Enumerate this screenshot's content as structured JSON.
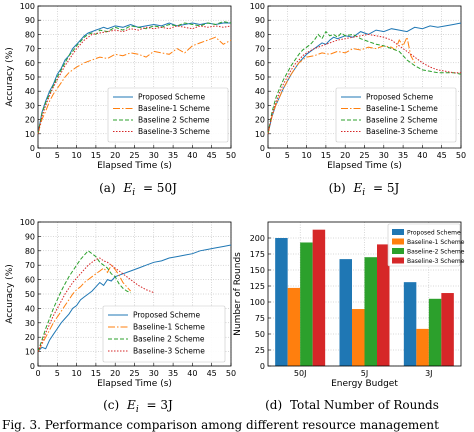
{
  "figure_caption": "Fig. 3.   Performance comparison among different resource management",
  "charts_meta": {
    "colors": {
      "proposed": "#1f77b4",
      "baseline1": "#ff7f0e",
      "baseline2": "#2ca02c",
      "baseline3": "#d62728"
    }
  },
  "chart_data": [
    {
      "type": "line",
      "caption": "(a)  E_i = 50J",
      "caption_prefix": "(a)",
      "caption_var": "E",
      "caption_sub": "i",
      "caption_value": "= 50J",
      "xlabel": "Elapsed Time (s)",
      "ylabel": "Accuracy (%)",
      "xlim": [
        0,
        50
      ],
      "ylim": [
        0,
        100
      ],
      "xticks": [
        0,
        5,
        10,
        15,
        20,
        25,
        30,
        35,
        40,
        45,
        50
      ],
      "yticks": [
        0,
        10,
        20,
        30,
        40,
        50,
        60,
        70,
        80,
        90,
        100
      ],
      "grid": true,
      "legend_position": "bottom-right",
      "series": [
        {
          "name": "Proposed Scheme",
          "key": "proposed",
          "dash": "",
          "x": [
            0,
            1,
            2,
            3,
            4,
            5,
            6,
            7,
            8,
            9,
            10,
            11,
            12,
            13,
            14,
            15,
            16,
            17,
            18,
            20,
            22,
            24,
            26,
            28,
            30,
            32,
            34,
            36,
            38,
            40,
            42,
            44,
            46,
            48,
            50
          ],
          "y": [
            10,
            25,
            33,
            40,
            45,
            52,
            56,
            62,
            65,
            70,
            73,
            76,
            79,
            81,
            82,
            83,
            84,
            85,
            84,
            86,
            85,
            87,
            85,
            86,
            87,
            86,
            88,
            86,
            87,
            88,
            87,
            88,
            87,
            88,
            88
          ]
        },
        {
          "name": "Baseline-1 Scheme",
          "key": "baseline1",
          "dash": "7,2,1.5,2",
          "x": [
            0,
            1,
            2,
            3,
            4,
            5,
            6,
            7,
            8,
            9,
            10,
            12,
            14,
            16,
            18,
            20,
            22,
            24,
            26,
            28,
            30,
            32,
            34,
            36,
            38,
            40,
            42,
            44,
            46,
            48,
            50
          ],
          "y": [
            10,
            20,
            26,
            33,
            38,
            42,
            46,
            50,
            53,
            55,
            57,
            60,
            62,
            64,
            63,
            66,
            65,
            67,
            66,
            64,
            68,
            67,
            66,
            70,
            67,
            72,
            74,
            76,
            78,
            73,
            76
          ]
        },
        {
          "name": "Baseline 2 Scheme",
          "key": "baseline2",
          "dash": "4,2",
          "x": [
            0,
            1,
            2,
            3,
            4,
            5,
            6,
            7,
            8,
            9,
            10,
            11,
            12,
            13,
            14,
            15,
            16,
            18,
            20,
            22,
            24,
            26,
            28,
            30,
            32,
            34,
            36,
            38,
            40,
            42,
            44,
            46,
            48,
            50
          ],
          "y": [
            10,
            24,
            32,
            38,
            44,
            50,
            55,
            60,
            65,
            68,
            72,
            75,
            78,
            80,
            81,
            80,
            83,
            82,
            85,
            83,
            86,
            85,
            84,
            86,
            85,
            87,
            86,
            88,
            87,
            86,
            88,
            87,
            89,
            88
          ]
        },
        {
          "name": "Baseline-3 Scheme",
          "key": "baseline3",
          "dash": "1.5,1.5",
          "x": [
            0,
            1,
            2,
            3,
            4,
            5,
            6,
            7,
            8,
            9,
            10,
            11,
            12,
            13,
            14,
            16,
            18,
            20,
            22,
            24,
            26,
            28,
            30,
            32,
            34,
            36,
            38,
            40,
            42,
            44,
            46,
            48,
            50
          ],
          "y": [
            10,
            22,
            30,
            37,
            43,
            48,
            53,
            58,
            62,
            66,
            70,
            73,
            76,
            78,
            80,
            81,
            82,
            83,
            82,
            84,
            83,
            85,
            84,
            85,
            84,
            86,
            85,
            84,
            86,
            85,
            86,
            85,
            86
          ]
        }
      ]
    },
    {
      "type": "line",
      "caption": "(b)  E_i = 5J",
      "caption_prefix": "(b)",
      "caption_var": "E",
      "caption_sub": "i",
      "caption_value": "= 5J",
      "xlabel": "Elapsed Time (s)",
      "ylabel": "",
      "xlim": [
        0,
        50
      ],
      "ylim": [
        0,
        100
      ],
      "xticks": [
        0,
        5,
        10,
        15,
        20,
        25,
        30,
        35,
        40,
        45,
        50
      ],
      "yticks": [
        0,
        10,
        20,
        30,
        40,
        50,
        60,
        70,
        80,
        90,
        100
      ],
      "grid": true,
      "legend_position": "bottom-right",
      "series": [
        {
          "name": "Proposed Scheme",
          "key": "proposed",
          "dash": "",
          "x": [
            0,
            1,
            2,
            3,
            4,
            5,
            6,
            7,
            8,
            9,
            10,
            11,
            12,
            13,
            14,
            15,
            16,
            17,
            18,
            20,
            22,
            24,
            26,
            28,
            30,
            32,
            34,
            36,
            38,
            40,
            42,
            44,
            46,
            48,
            50
          ],
          "y": [
            10,
            22,
            30,
            36,
            42,
            47,
            52,
            56,
            60,
            63,
            66,
            68,
            70,
            72,
            74,
            73,
            76,
            78,
            77,
            79,
            78,
            82,
            80,
            83,
            82,
            84,
            83,
            82,
            85,
            84,
            86,
            85,
            86,
            87,
            88
          ]
        },
        {
          "name": "Baseline-1 Scheme",
          "key": "baseline1",
          "dash": "7,2,1.5,2",
          "x": [
            0,
            1,
            2,
            3,
            4,
            5,
            6,
            7,
            8,
            9,
            10,
            12,
            14,
            16,
            18,
            20,
            22,
            24,
            26,
            28,
            30,
            32,
            33,
            34,
            35,
            36,
            37,
            38
          ],
          "y": [
            10,
            22,
            30,
            36,
            42,
            47,
            52,
            56,
            60,
            62,
            64,
            65,
            67,
            66,
            68,
            67,
            70,
            69,
            71,
            70,
            72,
            71,
            69,
            76,
            72,
            78,
            65,
            60
          ]
        },
        {
          "name": "Baseline 2 Scheme",
          "key": "baseline2",
          "dash": "4,2",
          "x": [
            0,
            1,
            2,
            3,
            4,
            5,
            6,
            7,
            8,
            9,
            10,
            11,
            12,
            13,
            14,
            15,
            16,
            17,
            18,
            19,
            20,
            22,
            24,
            26,
            28,
            30,
            32,
            34,
            36,
            38,
            40,
            42,
            44,
            46,
            48,
            50
          ],
          "y": [
            10,
            25,
            35,
            42,
            48,
            53,
            58,
            62,
            66,
            69,
            71,
            73,
            76,
            80,
            77,
            82,
            79,
            80,
            78,
            81,
            79,
            80,
            77,
            75,
            73,
            72,
            70,
            68,
            62,
            58,
            55,
            54,
            53,
            53,
            53,
            52
          ]
        },
        {
          "name": "Baseline-3 Scheme",
          "key": "baseline3",
          "dash": "1.5,1.5",
          "x": [
            0,
            1,
            2,
            3,
            4,
            5,
            6,
            7,
            8,
            9,
            10,
            12,
            14,
            16,
            18,
            20,
            22,
            24,
            26,
            28,
            30,
            32,
            34,
            36,
            38,
            40,
            42,
            44,
            46,
            48,
            50
          ],
          "y": [
            10,
            23,
            32,
            39,
            45,
            50,
            55,
            59,
            62,
            65,
            67,
            70,
            72,
            74,
            76,
            77,
            78,
            79,
            80,
            79,
            78,
            76,
            72,
            68,
            64,
            60,
            57,
            55,
            54,
            53,
            53
          ]
        }
      ]
    },
    {
      "type": "line",
      "caption": "(c)  E_i = 3J",
      "caption_prefix": "(c)",
      "caption_var": "E",
      "caption_sub": "i",
      "caption_value": "= 3J",
      "xlabel": "Elapsed Time (s)",
      "ylabel": "Accuracy (%)",
      "xlim": [
        0,
        50
      ],
      "ylim": [
        0,
        100
      ],
      "xticks": [
        0,
        5,
        10,
        15,
        20,
        25,
        30,
        35,
        40,
        45,
        50
      ],
      "yticks": [
        0,
        10,
        20,
        30,
        40,
        50,
        60,
        70,
        80,
        90,
        100
      ],
      "grid": true,
      "legend_position": "bottom-right",
      "series": [
        {
          "name": "Proposed Scheme",
          "key": "proposed",
          "dash": "",
          "x": [
            0,
            1,
            2,
            3,
            4,
            5,
            6,
            7,
            8,
            9,
            10,
            11,
            12,
            13,
            14,
            15,
            16,
            17,
            18,
            19,
            20,
            22,
            24,
            26,
            28,
            30,
            32,
            34,
            36,
            38,
            40,
            42,
            44,
            46,
            48,
            50
          ],
          "y": [
            10,
            13,
            12,
            18,
            22,
            26,
            30,
            33,
            36,
            40,
            42,
            46,
            48,
            50,
            52,
            55,
            58,
            56,
            60,
            59,
            62,
            64,
            66,
            68,
            70,
            72,
            73,
            75,
            76,
            77,
            78,
            80,
            81,
            82,
            83,
            84
          ]
        },
        {
          "name": "Baseline-1 Scheme",
          "key": "baseline1",
          "dash": "7,2,1.5,2",
          "x": [
            0,
            1,
            2,
            3,
            4,
            5,
            6,
            7,
            8,
            9,
            10,
            11,
            12,
            13,
            14,
            15,
            16,
            17,
            18,
            19,
            20,
            21,
            22,
            23,
            24
          ],
          "y": [
            10,
            15,
            20,
            25,
            30,
            34,
            38,
            42,
            46,
            50,
            53,
            55,
            58,
            60,
            62,
            64,
            66,
            68,
            65,
            70,
            67,
            63,
            58,
            55,
            52
          ]
        },
        {
          "name": "Baseline 2 Scheme",
          "key": "baseline2",
          "dash": "4,2",
          "x": [
            0,
            1,
            2,
            3,
            4,
            5,
            6,
            7,
            8,
            9,
            10,
            11,
            12,
            13,
            14,
            15,
            16,
            17,
            18,
            19,
            20,
            21,
            22,
            23,
            24
          ],
          "y": [
            10,
            18,
            26,
            33,
            40,
            46,
            52,
            57,
            62,
            66,
            70,
            74,
            77,
            80,
            78,
            76,
            72,
            70,
            68,
            64,
            62,
            57,
            54,
            52,
            51
          ]
        },
        {
          "name": "Baseline-3 Scheme",
          "key": "baseline3",
          "dash": "1.5,1.5",
          "x": [
            0,
            1,
            2,
            3,
            4,
            5,
            6,
            7,
            8,
            9,
            10,
            11,
            12,
            13,
            14,
            15,
            16,
            17,
            18,
            19,
            20,
            22,
            24,
            26,
            28,
            30
          ],
          "y": [
            10,
            16,
            23,
            29,
            35,
            40,
            45,
            50,
            54,
            58,
            61,
            64,
            67,
            70,
            72,
            74,
            75,
            73,
            72,
            70,
            68,
            64,
            60,
            56,
            53,
            51
          ]
        }
      ]
    },
    {
      "type": "bar",
      "caption": "(d)  Total Number of Rounds",
      "caption_prefix": "(d)",
      "caption_text": "Total Number of Rounds",
      "xlabel": "Energy Budget",
      "ylabel": "Number of Rounds",
      "categories": [
        "50J",
        "5J",
        "3J"
      ],
      "ylim": [
        0,
        225
      ],
      "yticks": [
        0,
        25,
        50,
        75,
        100,
        125,
        150,
        175,
        200
      ],
      "grid": true,
      "legend_position": "top-right",
      "series": [
        {
          "name": "Proposed Scheme",
          "key": "proposed",
          "values": [
            200,
            167,
            131
          ]
        },
        {
          "name": "Baseline-1 Scheme",
          "key": "baseline1",
          "values": [
            122,
            89,
            58
          ]
        },
        {
          "name": "Baseline-2 Scheme",
          "key": "baseline2",
          "values": [
            193,
            170,
            105
          ]
        },
        {
          "name": "Baseline-3 Scheme",
          "key": "baseline3",
          "values": [
            213,
            190,
            114
          ]
        }
      ]
    }
  ]
}
